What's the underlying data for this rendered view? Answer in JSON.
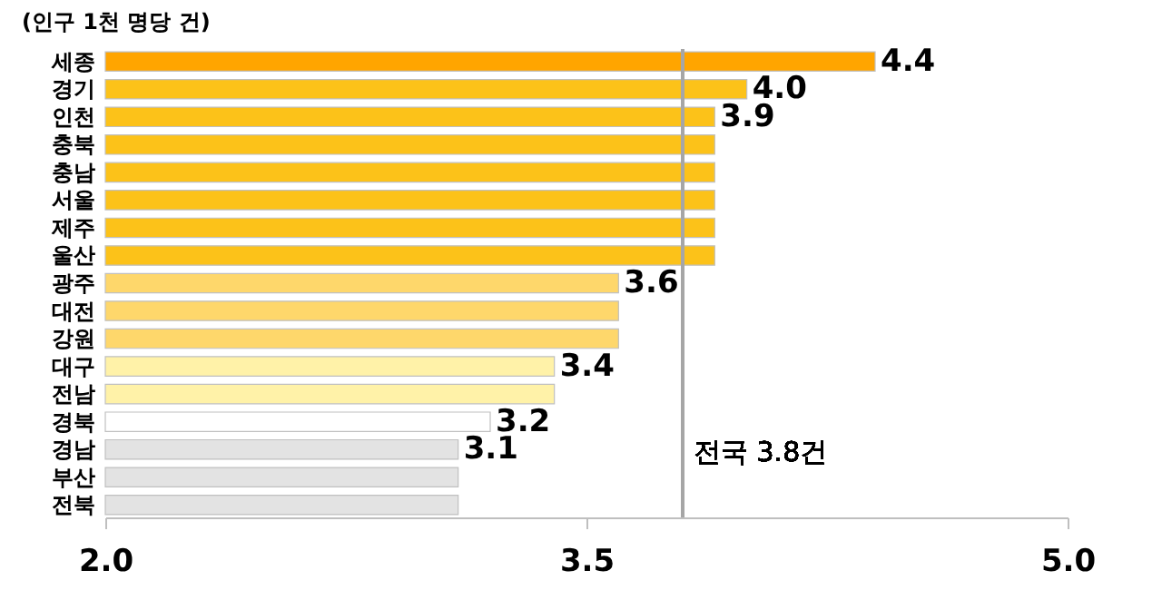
{
  "chart_data": {
    "type": "bar",
    "orientation": "horizontal",
    "title": "(인구  1천 명당 건)",
    "categories": [
      "세종",
      "경기",
      "인천",
      "충북",
      "충남",
      "서울",
      "제주",
      "울산",
      "광주",
      "대전",
      "강원",
      "대구",
      "전남",
      "경북",
      "경남",
      "부산",
      "전북"
    ],
    "values": [
      4.4,
      4.0,
      3.9,
      3.9,
      3.9,
      3.9,
      3.9,
      3.9,
      3.6,
      3.6,
      3.6,
      3.4,
      3.4,
      3.2,
      3.1,
      3.1,
      3.1
    ],
    "colors": [
      "#ffa500",
      "#fcc219",
      "#fcc219",
      "#fcc219",
      "#fcc219",
      "#fcc219",
      "#fcc219",
      "#fcc219",
      "#fed76b",
      "#fed76b",
      "#fed76b",
      "#fff2a8",
      "#fff2a8",
      "#ffffff",
      "#e3e3e3",
      "#e3e3e3",
      "#e3e3e3"
    ],
    "value_labels": [
      "4.4",
      "4.0",
      "3.9",
      null,
      null,
      null,
      null,
      null,
      "3.6",
      null,
      null,
      "3.4",
      null,
      "3.2",
      "3.1",
      null,
      null
    ],
    "xlim": [
      2.0,
      5.0
    ],
    "xticks": [
      {
        "value": 2.0,
        "label": "2.0"
      },
      {
        "value": 3.5,
        "label": "3.5"
      },
      {
        "value": 5.0,
        "label": "5.0"
      }
    ],
    "ref_lines": [
      {
        "axis": "x",
        "value": 3.8,
        "label": "전국 3.8건",
        "color": "#a6a6a6"
      }
    ],
    "grid": false,
    "legend": false
  }
}
